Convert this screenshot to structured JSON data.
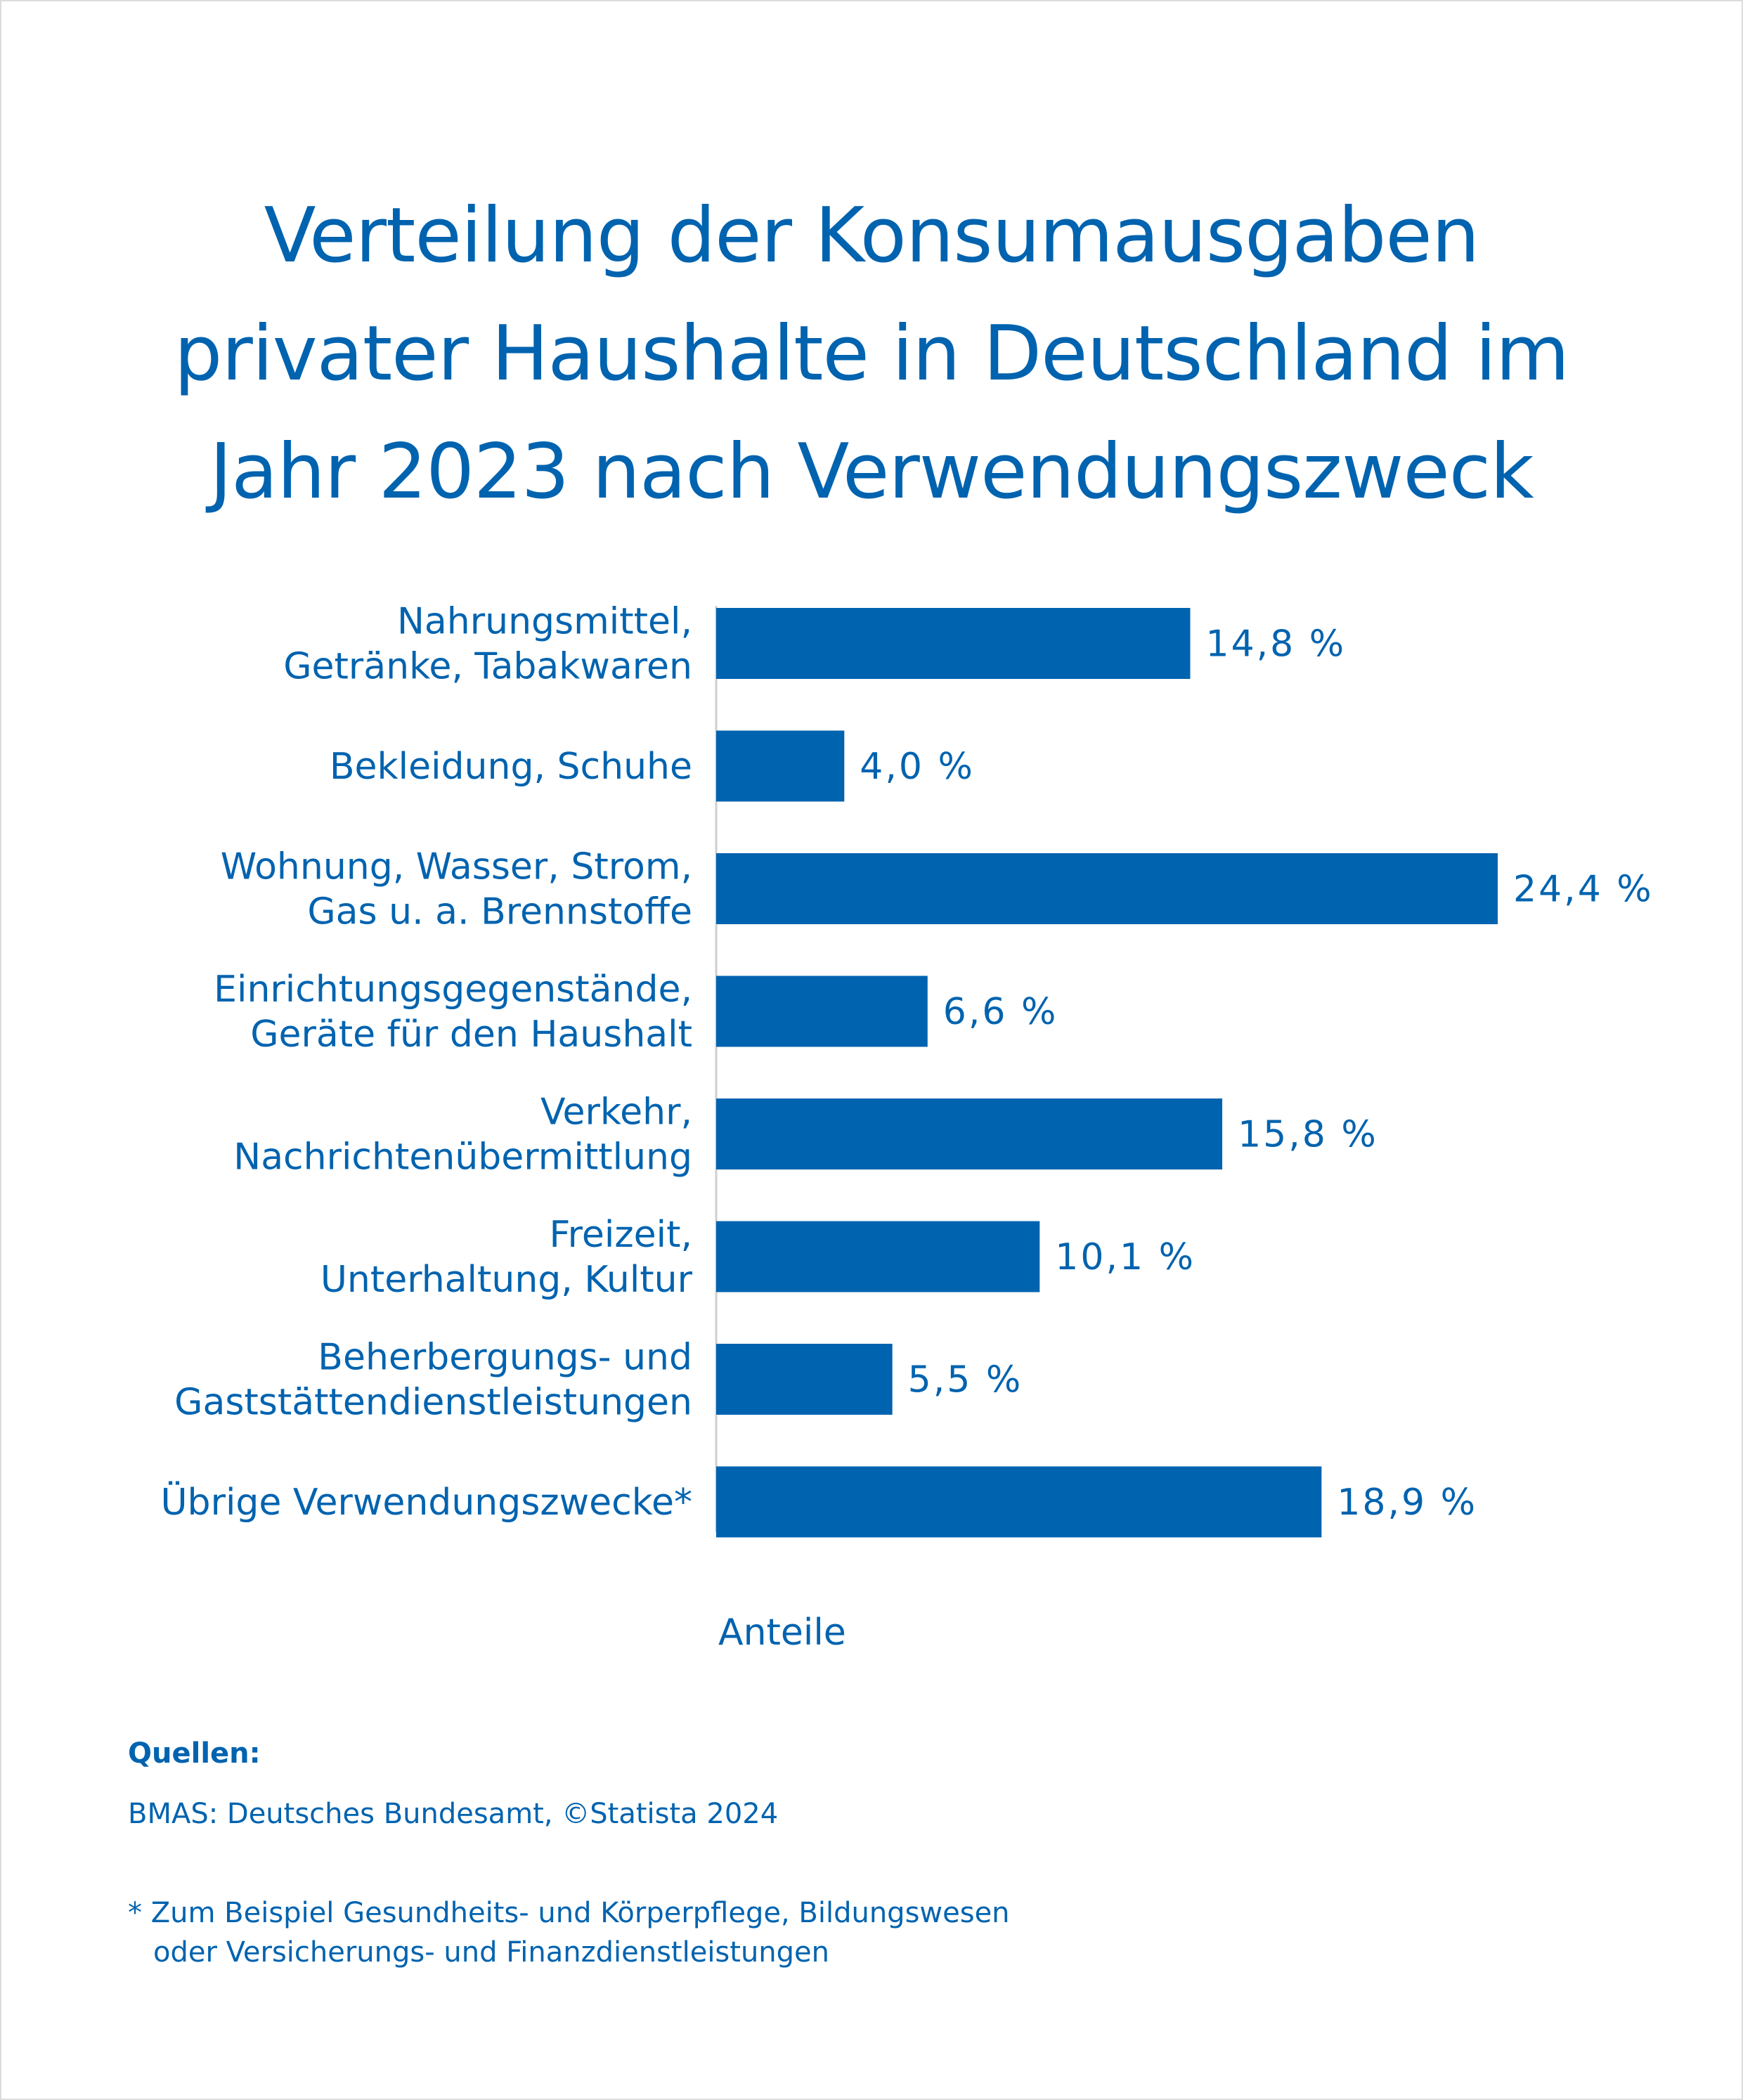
{
  "title_lines": [
    "Verteilung der Konsumausgaben",
    "privater Haushalte in Deutschland im",
    "Jahr 2023 nach Verwendungszweck"
  ],
  "chart_data": {
    "type": "bar",
    "orientation": "horizontal",
    "title": "Verteilung der Konsumausgaben privater Haushalte in Deutschland im Jahr 2023 nach Verwendungszweck",
    "categories": [
      [
        "Nahrungsmittel,",
        "Getränke, Tabakwaren"
      ],
      [
        "Bekleidung, Schuhe"
      ],
      [
        "Wohnung, Wasser, Strom,",
        "Gas u. a. Brennstoffe"
      ],
      [
        "Einrichtungsgegenstände,",
        "Geräte für den Haushalt"
      ],
      [
        "Verkehr,",
        "Nachrichtenübermittlung"
      ],
      [
        "Freizeit,",
        "Unterhaltung, Kultur"
      ],
      [
        "Beherbergungs- und",
        "Gaststättendienstleistungen"
      ],
      [
        "Übrige Verwendungszwecke*"
      ]
    ],
    "values": [
      14.8,
      4.0,
      24.4,
      6.6,
      15.8,
      10.1,
      5.5,
      18.9
    ],
    "value_labels": [
      "14,8 %",
      "4,0 %",
      "24,4 %",
      "6,6 %",
      "15,8 %",
      "10,1 %",
      "5,5 %",
      "18,9 %"
    ],
    "xlabel": "Anteile",
    "ylabel": "",
    "xlim": [
      0,
      24.4
    ],
    "unit": "%",
    "bar_color": "#0063af",
    "grid": false,
    "legend": "none"
  },
  "sources": {
    "title": "Quellen:",
    "text": "BMAS: Deutsches Bundesamt, ©Statista 2024"
  },
  "footnote": {
    "line1": "* Zum Beispiel Gesundheits- und Körperpflege, Bildungswesen",
    "line2": "oder Versicherungs- und Finanzdienstleistungen"
  },
  "colors": {
    "primary": "#0063af",
    "axis": "#cfcfcf",
    "frame": "#dcdcdc"
  }
}
